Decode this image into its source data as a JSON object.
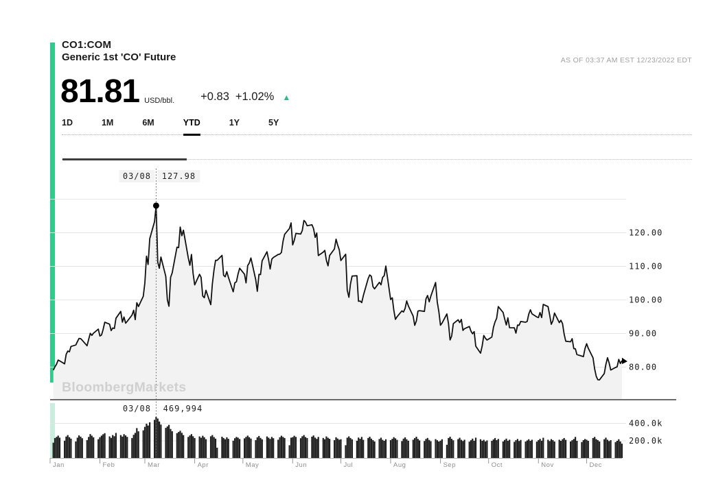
{
  "header": {
    "ticker": "CO1:COM",
    "name": "Generic 1st 'CO' Future",
    "as_of": "AS OF 03:37 AM EST 12/23/2022 EDT"
  },
  "quote": {
    "price": "81.81",
    "unit": "USD/bbl.",
    "change": "+0.83",
    "change_pct": "+1.02%",
    "direction": "up",
    "up_arrow": "▲"
  },
  "tabs": {
    "items": [
      "1D",
      "1M",
      "6M",
      "YTD",
      "1Y",
      "5Y"
    ],
    "active": "YTD"
  },
  "watermark": "BloombergMarkets",
  "colors": {
    "accent": "#2fcb8b",
    "accent_light": "#c9eedd",
    "up": "#2ebd85",
    "line": "#111111",
    "area_fill": "#f2f2f2",
    "grid": "#e4e4e4",
    "watermark": "#d0d0d0",
    "muted_text": "#8f8f8f",
    "bar": "#1f1f1f"
  },
  "chart_data": [
    {
      "type": "line",
      "name": "price",
      "title": "CO1:COM Generic 1st 'CO' Future, YTD 2022",
      "ylabel": "USD/bbl",
      "x_unit": "2022 trading weekdays (Mon-Fri), Jan 3 - Dec 23, 255 points",
      "x_month_labels": [
        "Jan",
        "Feb",
        "Mar",
        "Apr",
        "May",
        "Jun",
        "Jul",
        "Aug",
        "Sep",
        "Oct",
        "Nov",
        "Dec"
      ],
      "ylim": [
        74,
        131
      ],
      "grid": true,
      "legend": false,
      "yticks": [
        {
          "value": 130,
          "label": ""
        },
        {
          "value": 120,
          "label": "120.00"
        },
        {
          "value": 110,
          "label": "110.00"
        },
        {
          "value": 100,
          "label": "100.00"
        },
        {
          "value": 90,
          "label": "90.00"
        },
        {
          "value": 80,
          "label": "80.00"
        }
      ],
      "annotation": {
        "date": "03/08",
        "value_label": "127.98",
        "value": 127.98,
        "kind": "peak"
      },
      "series": [
        {
          "name": "CO1:COM close (USD/bbl)",
          "values": [
            78.98,
            80.0,
            80.8,
            81.99,
            81.75,
            80.87,
            83.72,
            84.67,
            84.47,
            86.06,
            86.48,
            87.51,
            88.44,
            88.38,
            87.89,
            86.27,
            88.2,
            89.96,
            89.34,
            90.03,
            91.21,
            89.16,
            89.47,
            91.11,
            93.27,
            92.69,
            90.78,
            91.55,
            91.41,
            94.44,
            96.48,
            93.28,
            94.81,
            92.97,
            93.54,
            95.39,
            96.84,
            94.05,
            99.08,
            97.93,
            100.99,
            104.97,
            112.93,
            110.46,
            118.11,
            123.21,
            127.98,
            111.14,
            109.33,
            112.67,
            106.9,
            99.91,
            98.02,
            106.64,
            107.93,
            115.62,
            115.48,
            121.6,
            119.03,
            120.65,
            112.48,
            110.23,
            113.45,
            107.91,
            104.39,
            107.53,
            106.64,
            101.07,
            100.58,
            102.78,
            98.48,
            104.64,
            108.78,
            111.7,
            111.7,
            113.16,
            107.25,
            106.8,
            108.33,
            106.65,
            102.32,
            104.99,
            105.32,
            107.59,
            109.34,
            107.58,
            104.97,
            110.14,
            110.9,
            112.39,
            105.94,
            102.46,
            107.51,
            107.45,
            111.55,
            114.24,
            111.93,
            109.11,
            112.04,
            112.55,
            113.42,
            113.56,
            114.03,
            117.4,
            119.43,
            121.17,
            122.84,
            116.29,
            117.61,
            119.72,
            119.51,
            120.57,
            123.58,
            123.07,
            122.01,
            122.27,
            121.17,
            118.51,
            119.81,
            113.12,
            114.13,
            114.65,
            111.74,
            110.05,
            113.12,
            115.09,
            117.98,
            116.26,
            114.81,
            111.63,
            113.5,
            102.77,
            100.69,
            104.65,
            107.02,
            107.1,
            99.49,
            99.57,
            99.1,
            101.16,
            106.27,
            107.35,
            106.92,
            103.86,
            103.2,
            105.15,
            104.4,
            106.62,
            107.14,
            110.01,
            100.03,
            100.54,
            96.78,
            94.12,
            94.92,
            96.65,
            96.31,
            97.4,
            99.6,
            98.15,
            95.1,
            92.34,
            93.65,
            96.59,
            96.72,
            96.48,
            100.22,
            101.22,
            99.34,
            100.99,
            105.09,
            99.31,
            96.49,
            92.36,
            93.02,
            95.74,
            92.83,
            88.0,
            89.15,
            92.84,
            94.0,
            93.17,
            94.1,
            90.84,
            91.35,
            92.0,
            90.62,
            89.83,
            90.46,
            86.15,
            84.06,
            86.27,
            89.32,
            88.49,
            87.96,
            88.86,
            91.8,
            93.37,
            94.42,
            97.92,
            96.19,
            94.29,
            92.45,
            94.57,
            91.63,
            91.62,
            90.03,
            92.41,
            92.38,
            93.5,
            93.26,
            93.52,
            95.69,
            96.96,
            95.77,
            94.83,
            94.65,
            96.16,
            94.67,
            98.57,
            97.92,
            95.36,
            92.65,
            93.67,
            95.99,
            93.14,
            93.86,
            92.86,
            89.78,
            87.62,
            87.45,
            88.36,
            85.41,
            85.34,
            83.63,
            83.19,
            83.03,
            85.43,
            86.88,
            85.57,
            82.68,
            79.35,
            77.17,
            76.15,
            76.1,
            77.99,
            80.68,
            82.7,
            81.21,
            79.04,
            79.8,
            79.99,
            82.2,
            80.98,
            81.81
          ]
        }
      ]
    },
    {
      "type": "bar",
      "name": "volume",
      "title": "Daily volume (contracts)",
      "grid": true,
      "legend": false,
      "ylim": [
        0,
        500000
      ],
      "yticks": [
        {
          "value": 400000,
          "label": "400.0k"
        },
        {
          "value": 200000,
          "label": "200.0k"
        }
      ],
      "annotation": {
        "date": "03/08",
        "value_label": "469,994",
        "value": 469994,
        "kind": "peak"
      },
      "series": [
        {
          "name": "volume",
          "values": [
            175000,
            228000,
            241000,
            256000,
            232000,
            198000,
            245000,
            262000,
            238000,
            221000,
            189000,
            232000,
            258000,
            244000,
            226000,
            205000,
            241000,
            273000,
            255000,
            236000,
            214000,
            238000,
            256000,
            271000,
            284000,
            247000,
            230000,
            262000,
            249000,
            286000,
            262000,
            245000,
            272000,
            258000,
            241000,
            228000,
            265000,
            287000,
            342000,
            305000,
            316000,
            356000,
            392000,
            371000,
            408000,
            436000,
            469994,
            451000,
            417000,
            382000,
            344000,
            361000,
            379000,
            332000,
            306000,
            284000,
            297000,
            311000,
            288000,
            262000,
            241000,
            257000,
            273000,
            249000,
            228000,
            246000,
            231000,
            254000,
            237000,
            215000,
            248000,
            262000,
            239000,
            221000,
            118000,
            243000,
            228000,
            214000,
            237000,
            219000,
            198000,
            226000,
            241000,
            232000,
            217000,
            224000,
            241000,
            256000,
            238000,
            222000,
            204000,
            237000,
            252000,
            229000,
            213000,
            246000,
            232000,
            218000,
            241000,
            226000,
            209000,
            237000,
            254000,
            241000,
            228000,
            146000,
            232000,
            238000,
            254000,
            241000,
            226000,
            248000,
            262000,
            239000,
            228000,
            244000,
            257000,
            233000,
            218000,
            241000,
            229000,
            214000,
            246000,
            231000,
            219000,
            204000,
            237000,
            222000,
            209000,
            214000,
            146000,
            232000,
            247000,
            228000,
            213000,
            197000,
            234000,
            219000,
            241000,
            208000,
            228000,
            243000,
            221000,
            204000,
            189000,
            217000,
            232000,
            208000,
            196000,
            214000,
            204000,
            219000,
            238000,
            224000,
            207000,
            193000,
            221000,
            236000,
            214000,
            198000,
            209000,
            227000,
            243000,
            218000,
            201000,
            194000,
            217000,
            229000,
            206000,
            192000,
            216000,
            203000,
            188000,
            198000,
            214000,
            151000,
            228000,
            243000,
            219000,
            202000,
            216000,
            231000,
            208000,
            194000,
            209000,
            187000,
            203000,
            221000,
            197000,
            232000,
            214000,
            196000,
            208000,
            189000,
            201000,
            196000,
            212000,
            228000,
            204000,
            218000,
            189000,
            206000,
            221000,
            197000,
            209000,
            184000,
            203000,
            217000,
            194000,
            206000,
            188000,
            201000,
            214000,
            196000,
            209000,
            187000,
            204000,
            219000,
            198000,
            231000,
            209000,
            193000,
            216000,
            204000,
            188000,
            209000,
            196000,
            214000,
            228000,
            207000,
            189000,
            203000,
            217000,
            241000,
            196000,
            182000,
            204000,
            217000,
            209000,
            196000,
            228000,
            241000,
            216000,
            204000,
            189000,
            214000,
            232000,
            209000,
            193000,
            204000,
            182000,
            196000,
            214000,
            189000,
            164000
          ]
        }
      ]
    }
  ]
}
